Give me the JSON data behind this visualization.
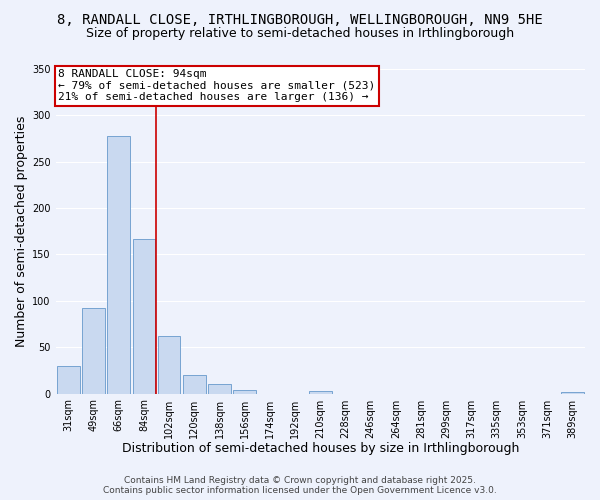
{
  "title": "8, RANDALL CLOSE, IRTHLINGBOROUGH, WELLINGBOROUGH, NN9 5HE",
  "subtitle": "Size of property relative to semi-detached houses in Irthlingborough",
  "xlabel": "Distribution of semi-detached houses by size in Irthlingborough",
  "ylabel": "Number of semi-detached properties",
  "categories": [
    "31sqm",
    "49sqm",
    "66sqm",
    "84sqm",
    "102sqm",
    "120sqm",
    "138sqm",
    "156sqm",
    "174sqm",
    "192sqm",
    "210sqm",
    "228sqm",
    "246sqm",
    "264sqm",
    "281sqm",
    "299sqm",
    "317sqm",
    "335sqm",
    "353sqm",
    "371sqm",
    "389sqm"
  ],
  "values": [
    30,
    92,
    278,
    167,
    62,
    20,
    10,
    4,
    0,
    0,
    3,
    0,
    0,
    0,
    0,
    0,
    0,
    0,
    0,
    0,
    2
  ],
  "bar_color": "#c9d9f0",
  "bar_edge_color": "#6699cc",
  "vline_color": "#cc0000",
  "annotation_title": "8 RANDALL CLOSE: 94sqm",
  "annotation_line1": "← 79% of semi-detached houses are smaller (523)",
  "annotation_line2": "21% of semi-detached houses are larger (136) →",
  "annotation_box_color": "#cc0000",
  "ylim": [
    0,
    350
  ],
  "yticks": [
    0,
    50,
    100,
    150,
    200,
    250,
    300,
    350
  ],
  "footer1": "Contains HM Land Registry data © Crown copyright and database right 2025.",
  "footer2": "Contains public sector information licensed under the Open Government Licence v3.0.",
  "background_color": "#eef2fc",
  "grid_color": "#ffffff",
  "title_fontsize": 10,
  "subtitle_fontsize": 9,
  "axis_label_fontsize": 9,
  "tick_fontsize": 7,
  "footer_fontsize": 6.5,
  "annotation_fontsize": 8
}
